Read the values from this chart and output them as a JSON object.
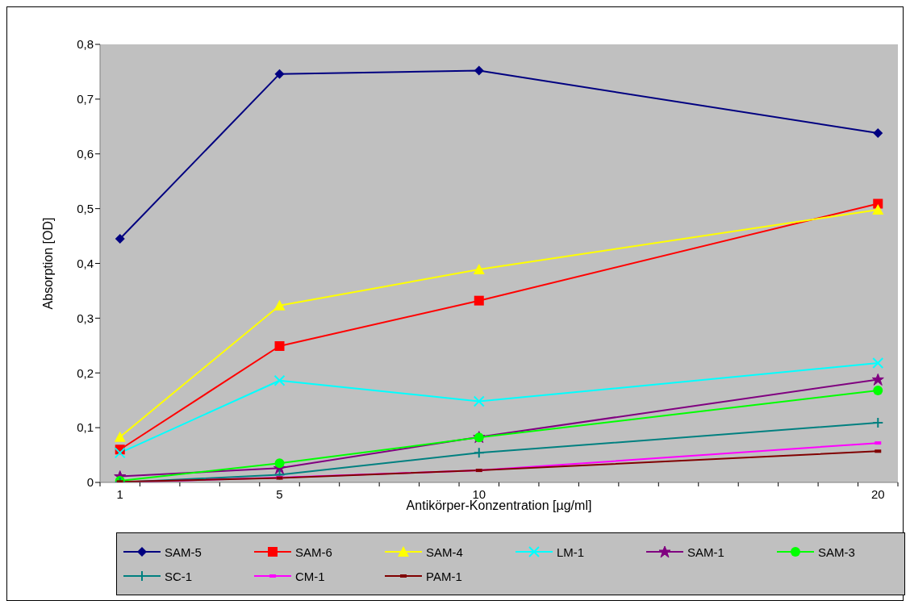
{
  "chart_data": {
    "type": "line",
    "xlabel": "Antikörper-Konzentration [µg/ml]",
    "ylabel": "Absorption [OD]",
    "x": [
      1,
      5,
      10,
      20
    ],
    "xlim": [
      0.5,
      20.5
    ],
    "xticks": [
      1,
      5,
      10,
      20,
      {
        "value": 0.5,
        "label": null
      },
      {
        "value": 1.5,
        "label": null
      },
      {
        "value": 2.5,
        "label": null
      },
      {
        "value": 3.5,
        "label": null
      },
      {
        "value": 4.5,
        "label": null
      },
      {
        "value": 5.5,
        "label": null
      },
      {
        "value": 6.5,
        "label": null
      },
      {
        "value": 7.5,
        "label": null
      },
      {
        "value": 8.5,
        "label": null
      },
      {
        "value": 9.5,
        "label": null
      },
      {
        "value": 10.5,
        "label": null
      },
      {
        "value": 11.5,
        "label": null
      },
      {
        "value": 12.5,
        "label": null
      },
      {
        "value": 13.5,
        "label": null
      },
      {
        "value": 14.5,
        "label": null
      },
      {
        "value": 15.5,
        "label": null
      },
      {
        "value": 16.5,
        "label": null
      },
      {
        "value": 17.5,
        "label": null
      },
      {
        "value": 18.5,
        "label": null
      },
      {
        "value": 19.5,
        "label": null
      },
      {
        "value": 20.5,
        "label": null
      }
    ],
    "ylim": [
      0,
      0.8
    ],
    "yticks": [
      {
        "value": 0,
        "label": "0"
      },
      {
        "value": 0.1,
        "label": "0,1"
      },
      {
        "value": 0.2,
        "label": "0,2"
      },
      {
        "value": 0.3,
        "label": "0,3"
      },
      {
        "value": 0.4,
        "label": "0,4"
      },
      {
        "value": 0.5,
        "label": "0,5"
      },
      {
        "value": 0.6,
        "label": "0,6"
      },
      {
        "value": 0.7,
        "label": "0,7"
      },
      {
        "value": 0.8,
        "label": "0,8"
      }
    ],
    "grid": false,
    "legend": "bottom",
    "line_style": "solid",
    "series": [
      {
        "name": "SAM-5",
        "color": "#000080",
        "marker": "diamond",
        "values": [
          0.445,
          0.746,
          0.752,
          0.638
        ]
      },
      {
        "name": "SAM-6",
        "color": "#ff0000",
        "marker": "square",
        "values": [
          0.06,
          0.249,
          0.332,
          0.509
        ]
      },
      {
        "name": "SAM-4",
        "color": "#ffff00",
        "marker": "triangle",
        "values": [
          0.083,
          0.323,
          0.389,
          0.498
        ]
      },
      {
        "name": "LM-1",
        "color": "#00ffff",
        "marker": "cross",
        "values": [
          0.054,
          0.186,
          0.148,
          0.218
        ]
      },
      {
        "name": "SAM-1",
        "color": "#800080",
        "marker": "star",
        "values": [
          0.011,
          0.026,
          0.083,
          0.188
        ]
      },
      {
        "name": "SAM-3",
        "color": "#00ff00",
        "marker": "circle",
        "values": [
          0.003,
          0.035,
          0.082,
          0.168
        ]
      },
      {
        "name": "SC-1",
        "color": "#008080",
        "marker": "cross",
        "values": [
          0,
          0.014,
          0.054,
          0.109
        ]
      },
      {
        "name": "CM-1",
        "color": "#ff00ff",
        "marker": "square",
        "values": [
          0,
          0.009,
          0.022,
          0.072
        ]
      },
      {
        "name": "PAM-1",
        "color": "#800000",
        "marker": "square",
        "values": [
          0.001,
          0.008,
          0.022,
          0.057
        ]
      }
    ]
  }
}
